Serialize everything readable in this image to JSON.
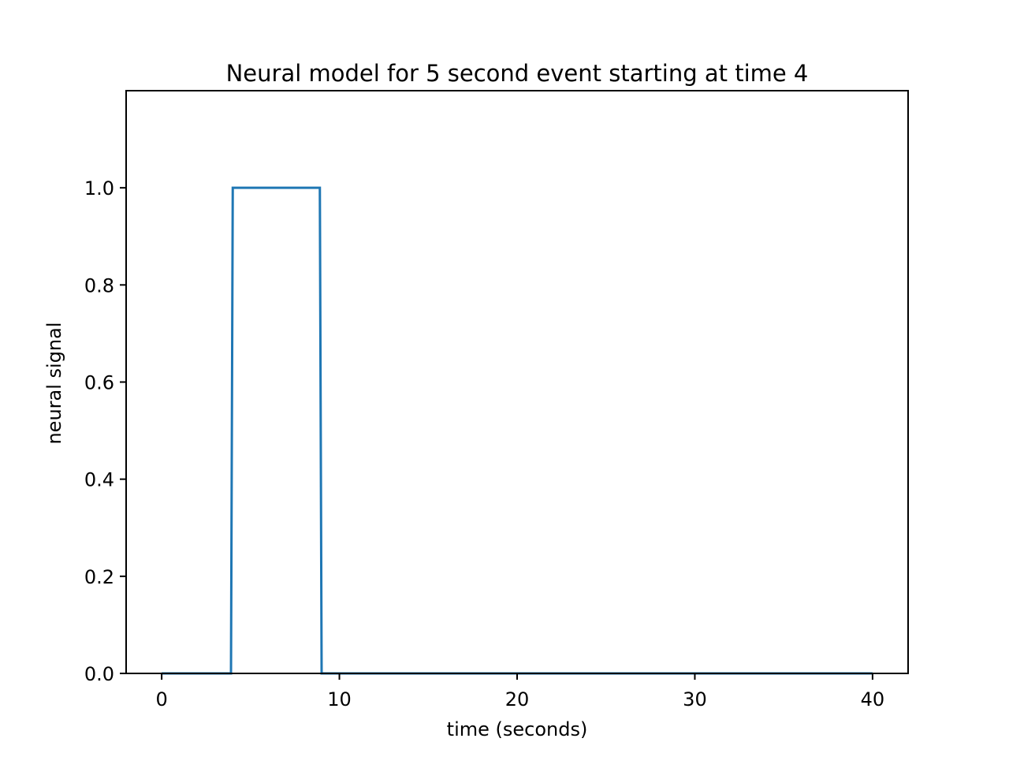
{
  "chart_data": {
    "type": "line",
    "title": "Neural model for 5 second event starting at time 4",
    "xlabel": "time (seconds)",
    "ylabel": "neural signal",
    "xlim": [
      -2,
      42
    ],
    "ylim": [
      0,
      1.2
    ],
    "x_ticks": [
      0,
      10,
      20,
      30,
      40
    ],
    "x_tick_labels": [
      "0",
      "10",
      "20",
      "30",
      "40"
    ],
    "y_ticks": [
      0.0,
      0.2,
      0.4,
      0.6,
      0.8,
      1.0
    ],
    "y_tick_labels": [
      "0.0",
      "0.2",
      "0.4",
      "0.6",
      "0.8",
      "1.0"
    ],
    "grid": false,
    "series": [
      {
        "color": "#1f77b4",
        "x": [
          0,
          3.9,
          4.0,
          8.9,
          9.0,
          40
        ],
        "y": [
          0,
          0,
          1,
          1,
          0,
          0
        ]
      }
    ]
  }
}
